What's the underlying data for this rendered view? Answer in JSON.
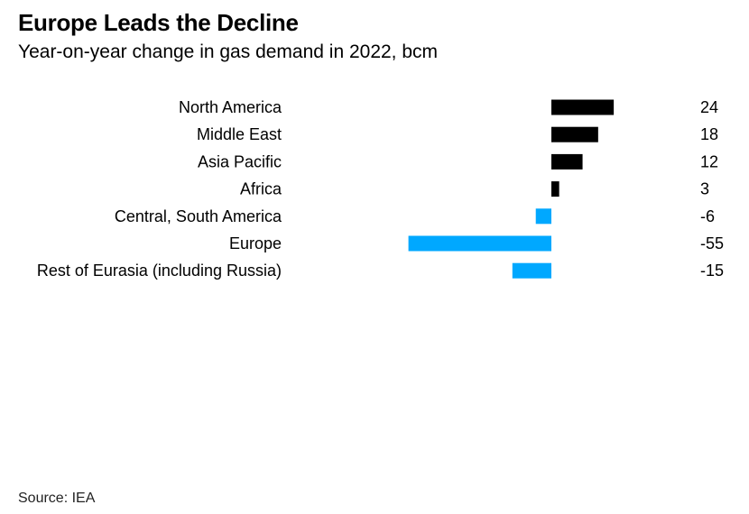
{
  "title": "Europe Leads the Decline",
  "subtitle": "Year-on-year change in gas demand in 2022, bcm",
  "source": "Source: IEA",
  "colors": {
    "positive": "#000000",
    "negative": "#00a8ff"
  },
  "chart_data": {
    "type": "bar",
    "orientation": "horizontal",
    "title": "Europe Leads the Decline",
    "subtitle": "Year-on-year change in gas demand in 2022, bcm",
    "categories": [
      "North America",
      "Middle East",
      "Asia Pacific",
      "Africa",
      "Central, South America",
      "Europe",
      "Rest of Eurasia (including Russia)"
    ],
    "values": [
      24,
      18,
      12,
      3,
      -6,
      -55,
      -15
    ],
    "value_labels": [
      "24",
      "18",
      "12",
      "3",
      "-6",
      "-55",
      "-15"
    ],
    "xlim": [
      -55,
      24
    ],
    "grid": false,
    "legend": "none"
  }
}
